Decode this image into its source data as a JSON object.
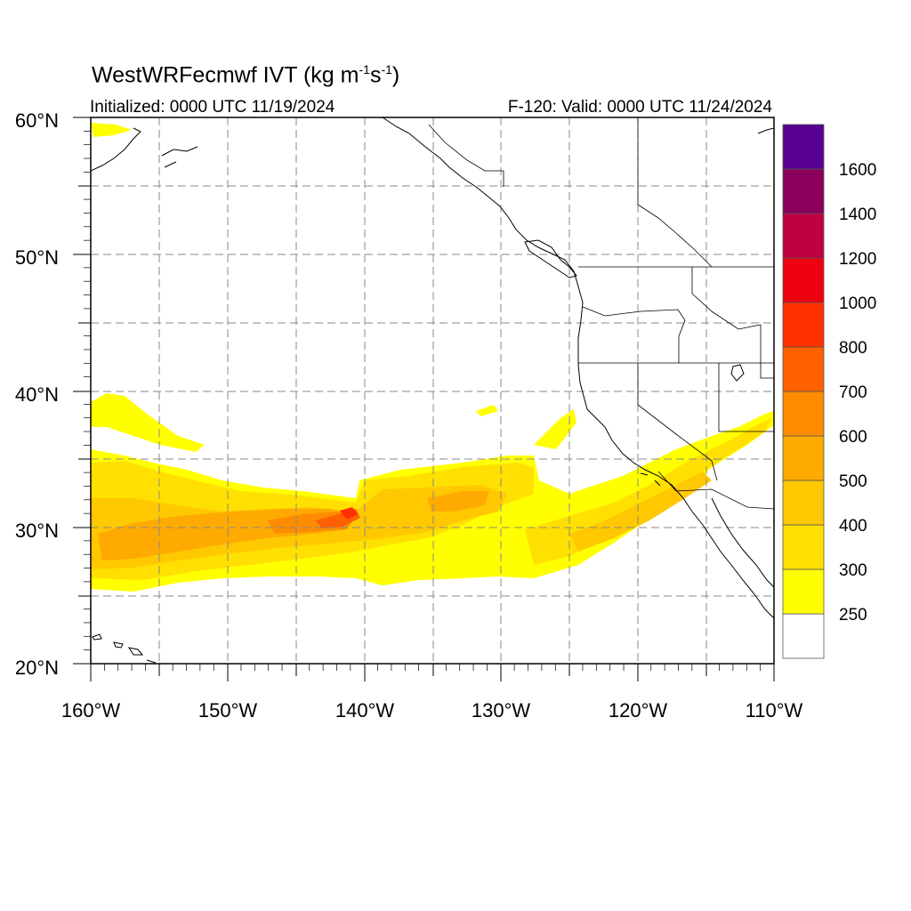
{
  "title": {
    "main": "WestWRFecmwf IVT (kg m",
    "sup1": "-1",
    "mid": "s",
    "sup2": "-1",
    "end": ")"
  },
  "init_label": "Initialized: 0000 UTC 11/19/2024",
  "valid_label": "F-120: Valid: 0000 UTC 11/24/2024",
  "map": {
    "lon_range": [
      -160,
      -110
    ],
    "lat_range": [
      20,
      60
    ],
    "lon_tick_labels": [
      "160°W",
      "150°W",
      "140°W",
      "130°W",
      "120°W",
      "110°W"
    ],
    "lat_tick_labels": [
      "20°N",
      "30°N",
      "40°N",
      "50°N",
      "60°N"
    ],
    "grid": true,
    "grid_spacing_deg": 5
  },
  "colorbar": {
    "position": "right",
    "labels": [
      "250",
      "300",
      "400",
      "500",
      "600",
      "700",
      "800",
      "1000",
      "1200",
      "1400",
      "1600"
    ],
    "colors": [
      "#ffffff",
      "#ffff00",
      "#ffe000",
      "#ffc800",
      "#ffaa00",
      "#ff8c00",
      "#ff6000",
      "#ff3000",
      "#ee0010",
      "#c00040",
      "#8a005a",
      "#580090"
    ]
  },
  "field": {
    "name": "Integrated Vapor Transport",
    "palette": {
      "yellow": "#ffff00",
      "gold": "#ffe000",
      "amber": "#ffc800",
      "orange": "#ffaa00",
      "dark_orange": "#ff8c00",
      "red_orange": "#ff6000",
      "red": "#ff3000"
    }
  }
}
